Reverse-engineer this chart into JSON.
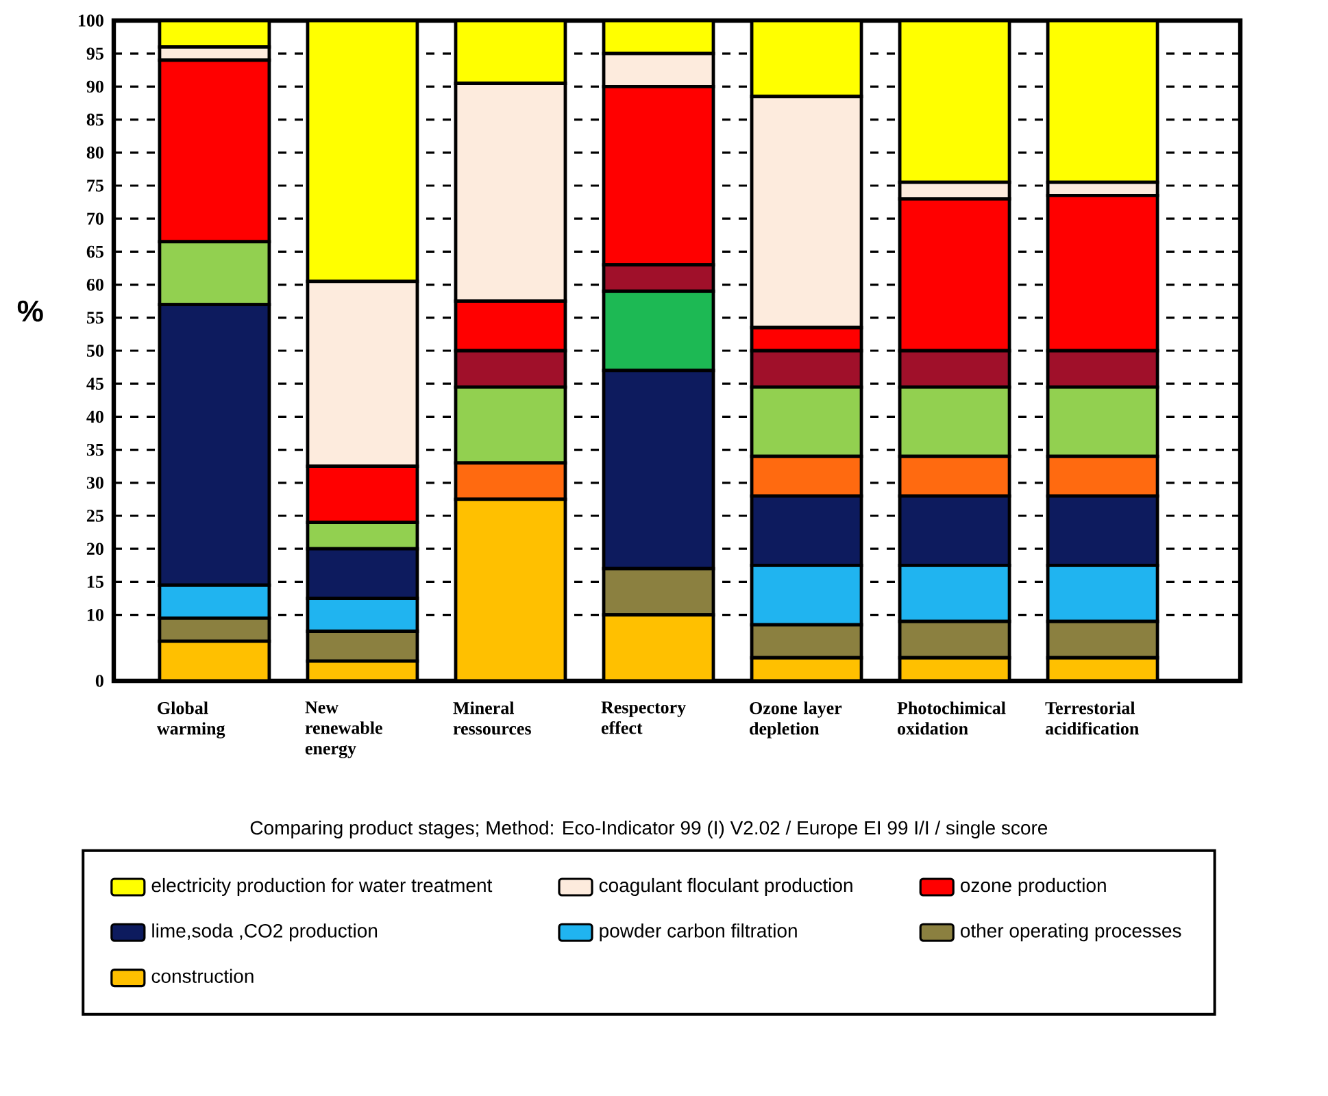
{
  "chart_data": {
    "type": "bar",
    "stacked": true,
    "xlabel": "Comparing product stages; Method: Eco-Indicator 99 (I) V2.02 / Europe EI 99 I/I / single score",
    "ylabel": "%",
    "categories": [
      "Global warming",
      "New renewable energy",
      "Mineral ressources",
      "Respectory effect",
      "Ozone layer depletion",
      "Photochimical oxidation",
      "Terrestorial acidification"
    ],
    "ylim": [
      0,
      100
    ],
    "yticks": [
      0,
      10,
      15,
      20,
      25,
      30,
      35,
      40,
      45,
      50,
      55,
      60,
      65,
      70,
      75,
      80,
      85,
      90,
      95,
      100
    ],
    "grid": "y",
    "legend": "bottom",
    "series": [
      {
        "name": "construction",
        "color": "#ffc000",
        "values": [
          6,
          3,
          27.5,
          10,
          3.5,
          3.5,
          3.5
        ]
      },
      {
        "name": "other operating processes",
        "color": "#8b8040",
        "values": [
          3.5,
          4.5,
          0,
          7,
          5,
          5.5,
          5.5
        ]
      },
      {
        "name": "powder carbon filtration",
        "color": "#20b4f0",
        "values": [
          5,
          5,
          0,
          0,
          9,
          8.5,
          8.5
        ]
      },
      {
        "name": "lime,soda ,CO2 production",
        "color": "#0d1b5e",
        "values": [
          42.5,
          7.5,
          0,
          30,
          10.5,
          10.5,
          10.5
        ]
      },
      {
        "color": "#ff6a10",
        "values": [
          0,
          0,
          5.5,
          0,
          6,
          6,
          6
        ]
      },
      {
        "color": "#1db954",
        "values": [
          0,
          0,
          0,
          12,
          0,
          0,
          0
        ]
      },
      {
        "color": "#92d050",
        "values": [
          9.5,
          4,
          11.5,
          0,
          10.5,
          10.5,
          10.5
        ]
      },
      {
        "color": "#a0102a",
        "values": [
          0,
          0,
          5.5,
          4,
          5.5,
          5.5,
          5.5
        ]
      },
      {
        "name": "ozone production",
        "color": "#ff0000",
        "values": [
          27.5,
          8.5,
          7.5,
          27,
          3.5,
          23,
          23.5
        ]
      },
      {
        "name": "coagulant floculant production",
        "color": "#fdebdd",
        "values": [
          2,
          28,
          33,
          5,
          35,
          2.5,
          2
        ]
      },
      {
        "name": "electricity production for water treatment",
        "color": "#ffff00",
        "values": [
          4,
          39.5,
          9.5,
          5,
          11.5,
          24.5,
          24.5
        ]
      }
    ]
  }
}
